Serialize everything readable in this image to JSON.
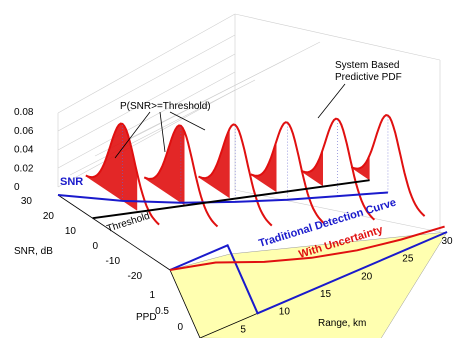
{
  "chart_data": {
    "type": "3d-line",
    "title": "",
    "annotations": {
      "system_pdf": [
        "System Based",
        "Predictive PDF"
      ],
      "probability": "P(SNR>=Threshold)",
      "snr": "SNR",
      "threshold": "Threshold",
      "traditional": "Traditional Detection Curve",
      "uncertainty": "With Uncertainty"
    },
    "axes": {
      "range": {
        "label": "Range, km",
        "ticks": [
          "0",
          "5",
          "10",
          "15",
          "20",
          "25",
          "30"
        ],
        "lim": [
          0,
          30
        ]
      },
      "snr": {
        "label": "SNR, dB",
        "ticks": [
          "-20",
          "-10",
          "0",
          "10",
          "20",
          "30"
        ],
        "lim": [
          -25,
          30
        ]
      },
      "pdf": {
        "ticks": [
          "0",
          "0.02",
          "0.04",
          "0.06",
          "0.08"
        ],
        "lim": [
          0,
          0.08
        ]
      },
      "ppd": {
        "label": "PPD",
        "ticks": [
          "0",
          "0.5",
          "1"
        ],
        "lim": [
          0,
          1
        ]
      }
    },
    "series": {
      "snr_curve": {
        "x": [
          0,
          5,
          10,
          15,
          20,
          25,
          30
        ],
        "y": [
          30,
          21,
          15,
          11,
          8,
          6,
          4
        ]
      },
      "threshold": {
        "x": [
          0,
          30
        ],
        "y": [
          13,
          13
        ]
      },
      "pdf_peaks": {
        "x": [
          5,
          10,
          15,
          20,
          25,
          30
        ],
        "peak": [
          0.055,
          0.055,
          0.055,
          0.055,
          0.055,
          0.055
        ]
      },
      "traditional_ppd": {
        "x": [
          0,
          7,
          7,
          30
        ],
        "y": [
          1,
          1,
          0,
          0
        ]
      },
      "uncertainty_ppd": {
        "x": [
          0,
          5,
          10,
          15,
          20,
          25,
          30
        ],
        "y": [
          1,
          0.85,
          0.6,
          0.4,
          0.25,
          0.15,
          0.08
        ]
      }
    },
    "colors": {
      "snr_curve": "#1a1acc",
      "threshold": "#000000",
      "pdf": "#e01010",
      "traditional": "#1a1acc",
      "uncertainty": "#e01010",
      "ppd_plane": "#ffffb0"
    }
  }
}
